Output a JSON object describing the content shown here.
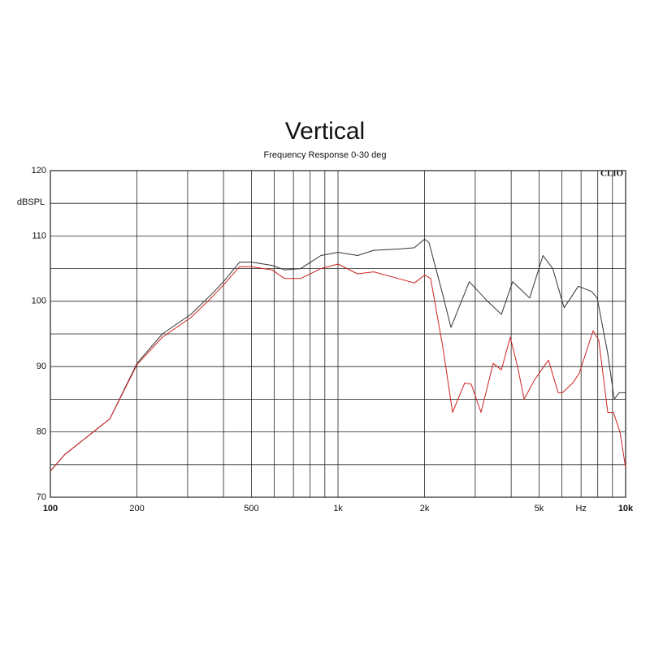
{
  "chart_data": {
    "type": "line",
    "title": "Vertical",
    "subtitle": "Frequency Response 0-30 deg",
    "ylabel": "dBSPL",
    "brand": "CLIO",
    "xscale": "log",
    "xlim": [
      100,
      10000
    ],
    "ylim": [
      70,
      120
    ],
    "xticks": [
      100,
      200,
      500,
      {
        "value": 1000,
        "label": "1k"
      },
      {
        "value": 2000,
        "label": "2k"
      },
      {
        "value": 5000,
        "label": "5k"
      },
      {
        "value": 7000,
        "label": "Hz"
      },
      {
        "value": 10000,
        "label": "10k"
      }
    ],
    "x_minor_ticks": [
      300,
      400,
      600,
      700,
      800,
      900,
      3000,
      4000,
      6000,
      8000,
      9000
    ],
    "yticks": [
      70,
      80,
      90,
      100,
      110,
      120
    ],
    "y_minor_ticks": [
      75,
      85,
      95,
      105,
      115
    ],
    "grid": true,
    "series": [
      {
        "color": "#333333",
        "x": [
          100,
          112,
          132,
          161,
          200,
          245,
          308,
          362,
          400,
          455,
          500,
          590,
          651,
          742,
          872,
          1000,
          1169,
          1331,
          1618,
          1843,
          2000,
          2070,
          2314,
          2470,
          2860,
          3310,
          3700,
          4050,
          4640,
          5160,
          5580,
          6110,
          6850,
          7610,
          7963,
          8668,
          9130,
          9493,
          10000
        ],
        "values": [
          74,
          76.5,
          79,
          82,
          90.5,
          95,
          98,
          101,
          103,
          106,
          106,
          105.5,
          104.8,
          105,
          107,
          107.5,
          107,
          107.8,
          108,
          108.2,
          109.5,
          109,
          101,
          96,
          103,
          100,
          98,
          103,
          100.5,
          107,
          105,
          99,
          102.3,
          101.5,
          100.5,
          92,
          85,
          86,
          86
        ]
      },
      {
        "color": "#cc2222",
        "x": [
          100,
          112,
          132,
          161,
          200,
          245,
          308,
          362,
          400,
          455,
          500,
          590,
          651,
          742,
          872,
          1000,
          1169,
          1331,
          1618,
          1843,
          2000,
          2099,
          2314,
          2502,
          2759,
          2906,
          3142,
          3464,
          3700,
          3972,
          4210,
          4437,
          4827,
          5391,
          5829,
          6030,
          6552,
          6902,
          7709,
          8067,
          8668,
          9070,
          9554,
          10000
        ],
        "values": [
          74,
          76.5,
          79,
          82,
          90.3,
          94.5,
          97.5,
          100.5,
          102.5,
          105.3,
          105.3,
          104.8,
          103.5,
          103.5,
          105,
          105.7,
          104.2,
          104.5,
          103.5,
          102.8,
          104,
          103.5,
          93,
          83,
          87.5,
          87.3,
          83,
          90.5,
          89.5,
          94.5,
          90,
          85,
          88,
          91,
          86,
          86,
          87.5,
          89,
          95.5,
          94,
          83,
          83,
          80,
          74.5
        ]
      }
    ]
  }
}
